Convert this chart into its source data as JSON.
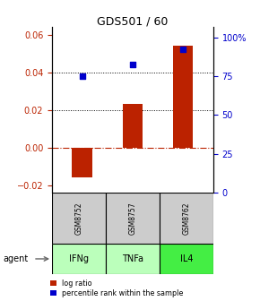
{
  "title": "GDS501 / 60",
  "bar_values": [
    -0.016,
    0.023,
    0.054
  ],
  "percentile_values": [
    0.038,
    0.044,
    0.052
  ],
  "categories": [
    "IFNg",
    "TNFa",
    "IL4"
  ],
  "gsm_labels": [
    "GSM8752",
    "GSM8757",
    "GSM8762"
  ],
  "ylim_left": [
    -0.024,
    0.064
  ],
  "ylim_right": [
    0,
    106.67
  ],
  "y_ticks_left": [
    -0.02,
    0.0,
    0.02,
    0.04,
    0.06
  ],
  "y_ticks_right": [
    0,
    25,
    50,
    75,
    100
  ],
  "y_tick_labels_right": [
    "0",
    "25",
    "50",
    "75",
    "100%"
  ],
  "dotted_lines": [
    0.02,
    0.04
  ],
  "bar_color": "#bb2200",
  "blue_color": "#0000cc",
  "gsm_color": "#cccccc",
  "agent_colors": [
    "#bbffbb",
    "#bbffbb",
    "#44ee44"
  ],
  "legend_log_ratio": "log ratio",
  "legend_percentile": "percentile rank within the sample",
  "figwidth": 2.9,
  "figheight": 3.36,
  "dpi": 100
}
